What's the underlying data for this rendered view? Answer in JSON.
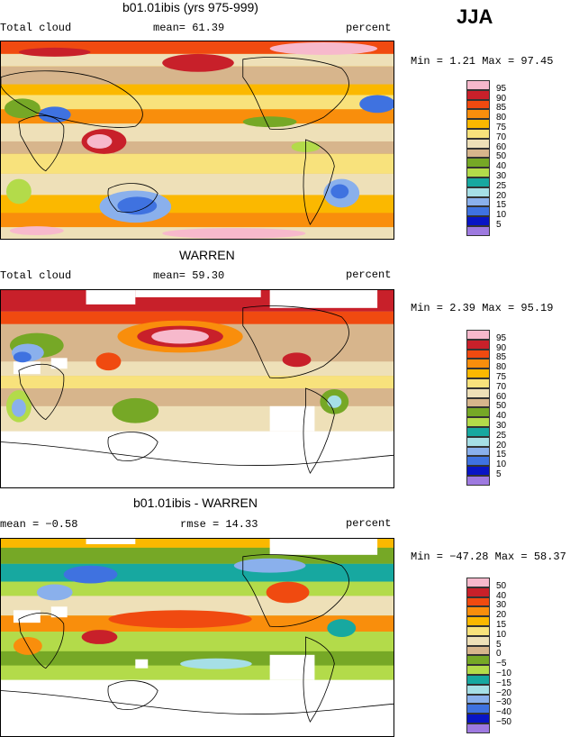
{
  "season": "JJA",
  "panels": [
    {
      "title": "b01.01ibis (yrs 975-999)",
      "left_label": "Total cloud",
      "center_label": "mean=  61.39",
      "right_label": "percent",
      "minmax": "Min =   1.21 Max =  97.45",
      "legend": [
        "95",
        "90",
        "85",
        "80",
        "75",
        "70",
        "60",
        "50",
        "40",
        "30",
        "25",
        "20",
        "15",
        "10",
        "5"
      ]
    },
    {
      "title": "WARREN",
      "left_label": "Total cloud",
      "center_label": "mean=  59.30",
      "right_label": "percent",
      "minmax": "Min =   2.39 Max =  95.19",
      "legend": [
        "95",
        "90",
        "85",
        "80",
        "75",
        "70",
        "60",
        "50",
        "40",
        "30",
        "25",
        "20",
        "15",
        "10",
        "5"
      ]
    },
    {
      "title": "b01.01ibis - WARREN",
      "left_label": "mean =  −0.58",
      "center_label": "rmse =  14.33",
      "right_label": "percent",
      "minmax": "Min = −47.28 Max =  58.37",
      "legend": [
        "50",
        "40",
        "30",
        "20",
        "15",
        "10",
        "5",
        "0",
        "−5",
        "−10",
        "−15",
        "−20",
        "−30",
        "−40",
        "−50"
      ]
    }
  ],
  "colors": {
    "cloud_scale": [
      "#f0088c",
      "#f7b9cc",
      "#c8202a",
      "#f04a10",
      "#f98e0c",
      "#fbb800",
      "#f8e27c",
      "#eee0b8",
      "#d7b58c",
      "#76a826",
      "#b3db4a",
      "#17a8a0",
      "#a6dfe6",
      "#8ab0ec",
      "#3f72e0",
      "#0814c4",
      "#9e7ae0"
    ],
    "diff_scale": [
      "#f0088c",
      "#f7b9cc",
      "#c8202a",
      "#f04a10",
      "#f98e0c",
      "#fbb800",
      "#f8e27c",
      "#eee0b8",
      "#d7b58c",
      "#76a826",
      "#b3db4a",
      "#17a8a0",
      "#a6dfe6",
      "#8ab0ec",
      "#3f72e0",
      "#0814c4",
      "#9e7ae0"
    ]
  }
}
